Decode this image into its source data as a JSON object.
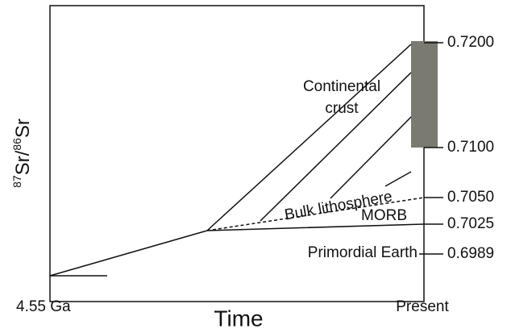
{
  "y_axis_label": {
    "sup1": "87",
    "base1": "Sr/",
    "sup2": "86",
    "base2": "Sr"
  },
  "x_axis_label": "Time",
  "x_labels": {
    "start": "4.55 Ga",
    "end": "Present"
  },
  "ticks": [
    "0.7200",
    "0.7100",
    "0.7050",
    "0.7025",
    "0.6989"
  ],
  "annotations": {
    "crust_1": "Continental",
    "crust_2": "crust",
    "bulk": "Bulk lithosphere",
    "morb": "MORB",
    "primordial": "Primordial Earth"
  }
}
